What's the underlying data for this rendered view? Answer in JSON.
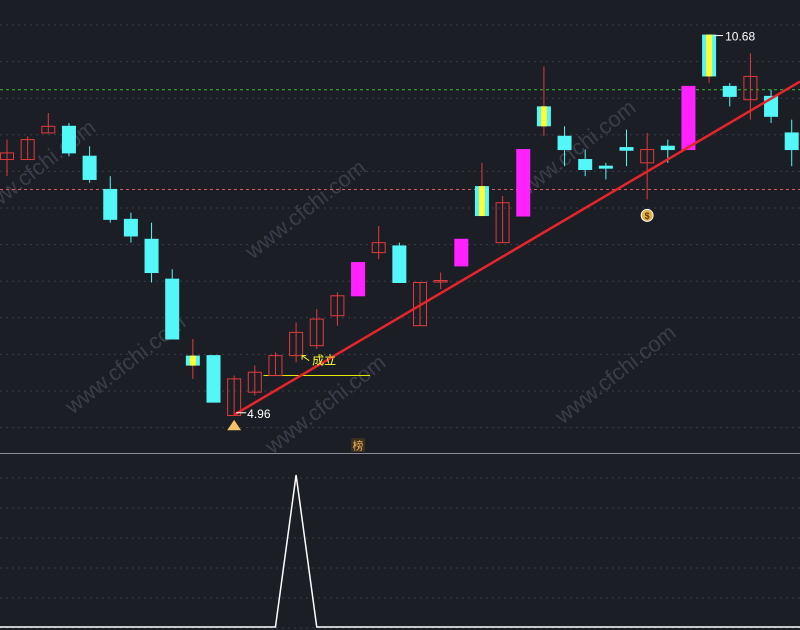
{
  "chart_data": [
    {
      "type": "candlestick",
      "ylim": [
        4.4,
        11.2
      ],
      "grid": true,
      "candles": [
        {
          "open": 8.9,
          "close": 8.8,
          "high": 9.1,
          "low": 8.55,
          "color": "red-hollow"
        },
        {
          "open": 8.8,
          "close": 9.1,
          "high": 9.15,
          "low": 8.8,
          "color": "red-hollow"
        },
        {
          "open": 9.2,
          "close": 9.3,
          "high": 9.5,
          "low": 9.2,
          "color": "red-hollow"
        },
        {
          "open": 9.3,
          "close": 8.9,
          "high": 9.35,
          "low": 8.85,
          "color": "cyan"
        },
        {
          "open": 8.85,
          "close": 8.5,
          "high": 9.0,
          "low": 8.45,
          "color": "cyan"
        },
        {
          "open": 8.35,
          "close": 7.9,
          "high": 8.55,
          "low": 7.85,
          "color": "cyan"
        },
        {
          "open": 7.9,
          "close": 7.65,
          "high": 8.0,
          "low": 7.55,
          "color": "cyan"
        },
        {
          "open": 7.6,
          "close": 7.1,
          "high": 7.85,
          "low": 6.95,
          "color": "cyan"
        },
        {
          "open": 7.0,
          "close": 6.1,
          "high": 7.15,
          "low": 6.1,
          "color": "cyan"
        },
        {
          "open": 5.85,
          "close": 5.7,
          "high": 6.1,
          "low": 5.5,
          "color": "yellow"
        },
        {
          "open": 5.85,
          "close": 5.15,
          "high": 5.85,
          "low": 5.15,
          "color": "cyan"
        },
        {
          "open": 4.95,
          "close": 5.5,
          "high": 5.55,
          "low": 4.96,
          "color": "red-hollow"
        },
        {
          "open": 5.3,
          "close": 5.6,
          "high": 5.7,
          "low": 5.25,
          "color": "red-hollow"
        },
        {
          "open": 5.55,
          "close": 5.85,
          "high": 5.9,
          "low": 5.55,
          "color": "red-hollow"
        },
        {
          "open": 5.85,
          "close": 6.2,
          "high": 6.35,
          "low": 5.75,
          "color": "red-hollow"
        },
        {
          "open": 6.0,
          "close": 6.4,
          "high": 6.55,
          "low": 5.95,
          "color": "red-hollow"
        },
        {
          "open": 6.45,
          "close": 6.75,
          "high": 6.8,
          "low": 6.3,
          "color": "red-hollow"
        },
        {
          "open": 6.75,
          "close": 7.25,
          "high": 7.25,
          "low": 6.75,
          "color": "magenta"
        },
        {
          "open": 7.4,
          "close": 7.55,
          "high": 7.8,
          "low": 7.3,
          "color": "red-hollow"
        },
        {
          "open": 7.5,
          "close": 6.95,
          "high": 7.55,
          "low": 6.95,
          "color": "cyan"
        },
        {
          "open": 6.3,
          "close": 6.95,
          "high": 6.95,
          "low": 6.3,
          "color": "red-hollow"
        },
        {
          "open": 6.98,
          "close": 6.98,
          "high": 7.1,
          "low": 6.85,
          "color": "red-hollow"
        },
        {
          "open": 7.2,
          "close": 7.6,
          "high": 7.6,
          "low": 7.2,
          "color": "magenta"
        },
        {
          "open": 7.95,
          "close": 8.4,
          "high": 8.75,
          "low": 7.95,
          "color": "yellow"
        },
        {
          "open": 7.55,
          "close": 8.15,
          "high": 8.25,
          "low": 7.55,
          "color": "red-hollow"
        },
        {
          "open": 7.95,
          "close": 8.95,
          "high": 8.95,
          "low": 7.95,
          "color": "magenta"
        },
        {
          "open": 9.3,
          "close": 9.6,
          "high": 10.2,
          "low": 9.15,
          "color": "yellow"
        },
        {
          "open": 9.15,
          "close": 8.95,
          "high": 9.3,
          "low": 8.7,
          "color": "cyan"
        },
        {
          "open": 8.8,
          "close": 8.65,
          "high": 8.95,
          "low": 8.55,
          "color": "cyan"
        },
        {
          "open": 8.7,
          "close": 8.67,
          "high": 8.75,
          "low": 8.5,
          "color": "cyan"
        },
        {
          "open": 8.98,
          "close": 8.94,
          "high": 9.25,
          "low": 8.7,
          "color": "cyan"
        },
        {
          "open": 8.75,
          "close": 8.95,
          "high": 9.2,
          "low": 8.2,
          "color": "red-hollow"
        },
        {
          "open": 8.95,
          "close": 9.0,
          "high": 9.1,
          "low": 8.75,
          "color": "cyan"
        },
        {
          "open": 8.95,
          "close": 9.9,
          "high": 9.9,
          "low": 8.95,
          "color": "magenta"
        },
        {
          "open": 10.05,
          "close": 10.68,
          "high": 10.68,
          "low": 9.95,
          "color": "yellow"
        },
        {
          "open": 9.9,
          "close": 9.75,
          "high": 9.95,
          "low": 9.6,
          "color": "cyan"
        },
        {
          "open": 9.7,
          "close": 10.05,
          "high": 10.4,
          "low": 9.4,
          "color": "red-hollow"
        },
        {
          "open": 9.75,
          "close": 9.45,
          "high": 9.85,
          "low": 9.35,
          "color": "cyan"
        },
        {
          "open": 9.2,
          "close": 8.95,
          "high": 9.4,
          "low": 8.7,
          "color": "cyan"
        }
      ],
      "annotations": {
        "low_label": "4.96",
        "high_label": "10.68",
        "signal_label": "成立",
        "board_badge": "榜"
      },
      "trendline": {
        "from": [
          11,
          4.96
        ],
        "to": [
          38,
          9.9
        ]
      },
      "horizontal_lines": [
        {
          "value": 9.85,
          "color": "#2ebd2e",
          "style": "dashed"
        },
        {
          "value": 8.35,
          "color": "#d85c5c",
          "style": "dashed"
        },
        {
          "value": 5.55,
          "color": "#e6e600",
          "style": "solid",
          "from_index": 13,
          "to_index": 17
        }
      ]
    },
    {
      "type": "line",
      "ylim": [
        0,
        1
      ],
      "series": [
        {
          "values": [
            0,
            0,
            0,
            0,
            0,
            0,
            0,
            0,
            0,
            0,
            0,
            0,
            0,
            0,
            1,
            0,
            0,
            0,
            0,
            0,
            0,
            0,
            0,
            0,
            0,
            0,
            0,
            0,
            0,
            0,
            0,
            0,
            0,
            0,
            0,
            0,
            0,
            0,
            0
          ]
        }
      ]
    }
  ],
  "watermark": "www.cfchi.com",
  "colors": {
    "background": "#1c1e26",
    "up": "#e23a3a",
    "down": "#54f7f7",
    "limit_up": "#ff22ff",
    "highlight": "#ffff33",
    "trendline": "#e6252a",
    "grid": "#3a3d4a"
  }
}
